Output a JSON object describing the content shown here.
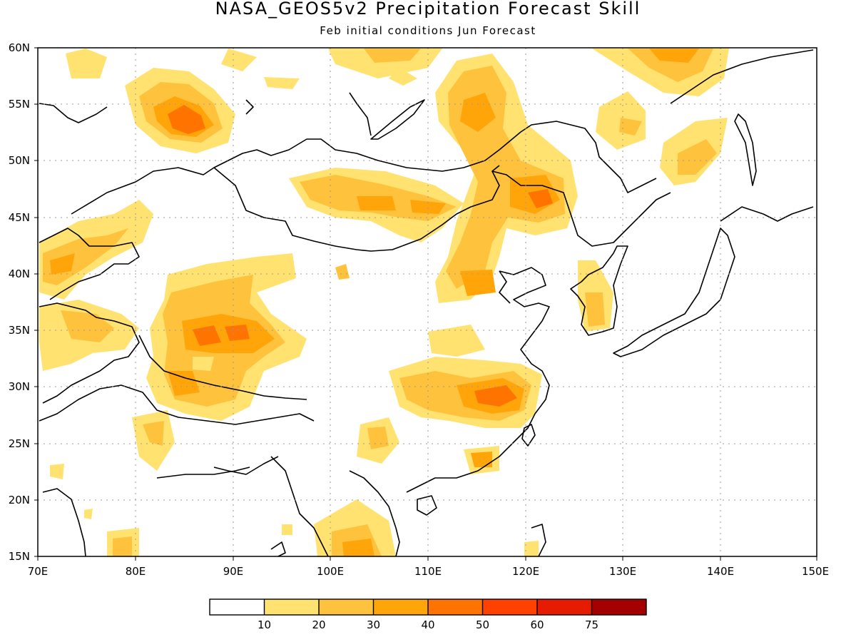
{
  "title": "NASA_GEOS5v2 Precipitation Forecast Skill",
  "subtitle": "Feb initial conditions  Jun Forecast",
  "map": {
    "lon_range": [
      70,
      150
    ],
    "lat_range": [
      15,
      60
    ],
    "lon_ticks": [
      "70E",
      "80E",
      "90E",
      "100E",
      "110E",
      "120E",
      "130E",
      "140E",
      "150E"
    ],
    "lat_ticks": [
      "15N",
      "20N",
      "25N",
      "30N",
      "35N",
      "40N",
      "45N",
      "50N",
      "55N",
      "60N"
    ],
    "grid": "dotted"
  },
  "colorbar": {
    "colors": [
      "#ffffff",
      "#ffe270",
      "#ffc23c",
      "#ffa50a",
      "#ff7300",
      "#ff4100",
      "#e61b00",
      "#a50000"
    ],
    "labels": [
      "10",
      "20",
      "30",
      "40",
      "50",
      "60",
      "75"
    ]
  }
}
